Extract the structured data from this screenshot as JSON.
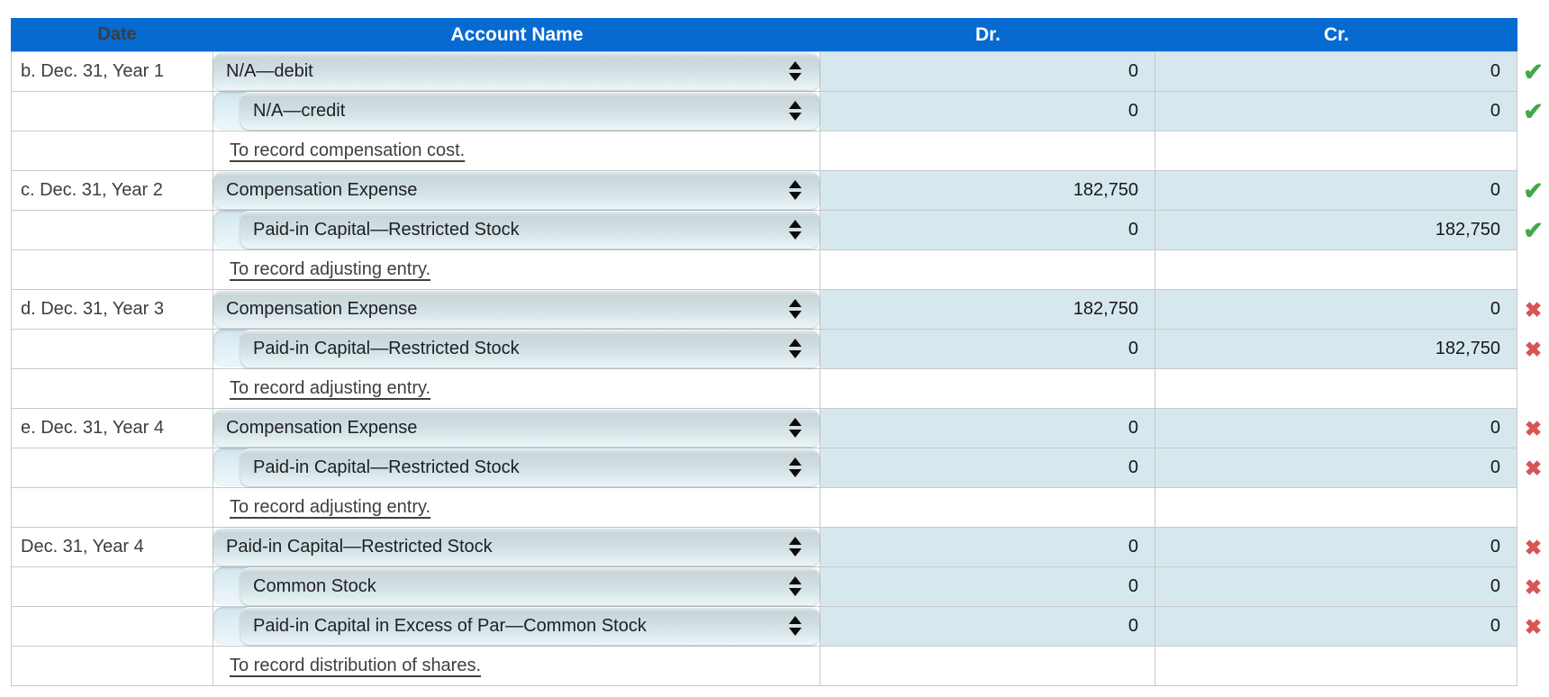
{
  "colors": {
    "header_bg": "#066ad1",
    "header_text": "#ffffff",
    "grid_line": "#c6c9cb",
    "cell_blue": "#d6e8ee",
    "check_green": "#42a948",
    "cross_red": "#d95555",
    "date_text": "#3d3d3d",
    "value_text": "#17181a",
    "memo_text": "#3f3f3f",
    "select_text": "#202124"
  },
  "icons": {
    "check": "✔",
    "cross": "✖",
    "spinner": "up-down-arrows"
  },
  "table": {
    "columns": [
      "Date",
      "Account Name",
      "Dr.",
      "Cr."
    ],
    "rows": [
      {
        "type": "entry",
        "date": "b. Dec. 31, Year 1",
        "account": "N/A—debit",
        "indent": false,
        "dr": "0",
        "cr": "0",
        "status": "check"
      },
      {
        "type": "entry",
        "date": "",
        "account": "N/A—credit",
        "indent": true,
        "dr": "0",
        "cr": "0",
        "status": "check"
      },
      {
        "type": "memo",
        "memo": "To record compensation cost."
      },
      {
        "type": "entry",
        "date": "c. Dec. 31, Year 2",
        "account": "Compensation Expense",
        "indent": false,
        "dr": "182,750",
        "cr": "0",
        "status": "check"
      },
      {
        "type": "entry",
        "date": "",
        "account": "Paid-in Capital—Restricted Stock",
        "indent": true,
        "dr": "0",
        "cr": "182,750",
        "status": "check"
      },
      {
        "type": "memo",
        "memo": "To record adjusting entry."
      },
      {
        "type": "entry",
        "date": "d. Dec. 31, Year 3",
        "account": "Compensation Expense",
        "indent": false,
        "dr": "182,750",
        "cr": "0",
        "status": "cross"
      },
      {
        "type": "entry",
        "date": "",
        "account": "Paid-in Capital—Restricted Stock",
        "indent": true,
        "dr": "0",
        "cr": "182,750",
        "status": "cross"
      },
      {
        "type": "memo",
        "memo": "To record adjusting entry."
      },
      {
        "type": "entry",
        "date": "e. Dec. 31, Year 4",
        "account": "Compensation Expense",
        "indent": false,
        "dr": "0",
        "cr": "0",
        "status": "cross"
      },
      {
        "type": "entry",
        "date": "",
        "account": "Paid-in Capital—Restricted Stock",
        "indent": true,
        "dr": "0",
        "cr": "0",
        "status": "cross"
      },
      {
        "type": "memo",
        "memo": "To record adjusting entry."
      },
      {
        "type": "entry",
        "date": "Dec. 31, Year 4",
        "account": "Paid-in Capital—Restricted Stock",
        "indent": false,
        "dr": "0",
        "cr": "0",
        "status": "cross"
      },
      {
        "type": "entry",
        "date": "",
        "account": "Common Stock",
        "indent": true,
        "dr": "0",
        "cr": "0",
        "status": "cross"
      },
      {
        "type": "entry",
        "date": "",
        "account": "Paid-in Capital in Excess of Par—Common Stock",
        "indent": true,
        "dr": "0",
        "cr": "0",
        "status": "cross"
      },
      {
        "type": "memo",
        "memo": "To record distribution of shares."
      }
    ]
  }
}
